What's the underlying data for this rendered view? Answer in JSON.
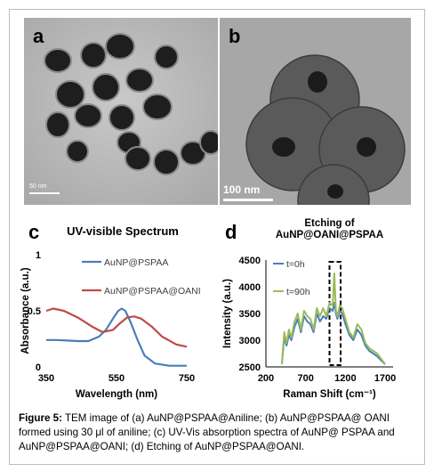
{
  "figure": {
    "panel_a": {
      "label": "a",
      "scale_bar": "50 nm"
    },
    "panel_b": {
      "label": "b",
      "scale_bar": "100 nm"
    },
    "panel_c": {
      "label": "c"
    },
    "panel_d": {
      "label": "d"
    },
    "caption": {
      "prefix": "Figure 5:",
      "text": " TEM image of (a) AuNP@PSPAA@Aniline; (b) AuNP@PSPAA@ OANI formed using 30 μl of aniline; (c) UV-Vis absorption spectra of AuNP@ PSPAA and AuNP@PSPAA@OANI; (d) Etching of AuNP@PSPAA@OANI."
    }
  },
  "colors": {
    "blue": "#4a7ebb",
    "red": "#be4b48",
    "green": "#9bbb59",
    "frame": "#bdbdbd"
  },
  "chart_data": [
    {
      "type": "line",
      "title": "UV-visible Spectrum",
      "xlabel": "Wavelength (nm)",
      "ylabel": "Absorbance (a.u.)",
      "xlim": [
        350,
        750
      ],
      "ylim": [
        0,
        1
      ],
      "xticks": [
        "350",
        "550",
        "750"
      ],
      "yticks": [
        "0",
        "0.5",
        "1"
      ],
      "legend_position": "top-right",
      "series": [
        {
          "name": "AuNP@PSPAA",
          "x": [
            350,
            380,
            410,
            440,
            470,
            500,
            520,
            540,
            555,
            565,
            575,
            590,
            610,
            630,
            660,
            700,
            750
          ],
          "y": [
            0.24,
            0.24,
            0.235,
            0.23,
            0.23,
            0.27,
            0.33,
            0.43,
            0.5,
            0.52,
            0.5,
            0.4,
            0.24,
            0.1,
            0.03,
            0.01,
            0.01
          ]
        },
        {
          "name": "AuNP@PSPAA@OANI",
          "x": [
            350,
            370,
            400,
            440,
            480,
            510,
            540,
            560,
            580,
            600,
            620,
            650,
            680,
            720,
            750
          ],
          "y": [
            0.5,
            0.52,
            0.5,
            0.44,
            0.36,
            0.31,
            0.33,
            0.39,
            0.44,
            0.45,
            0.43,
            0.36,
            0.27,
            0.2,
            0.18
          ]
        }
      ]
    },
    {
      "type": "line",
      "title": "Etching of AuNP@OANI@PSPAA",
      "title_lines": [
        "Etching of",
        "AuNP@OANI@PSPAA"
      ],
      "xlabel": "Raman Shift (cm⁻¹)",
      "ylabel": "Intensity (a.u.)",
      "xlim": [
        200,
        1800
      ],
      "ylim": [
        2500,
        4500
      ],
      "xticks": [
        "200",
        "700",
        "1200",
        "1700"
      ],
      "yticks": [
        "2500",
        "3000",
        "3500",
        "4000",
        "4500"
      ],
      "legend_position": "top-left",
      "highlight_range": [
        1000,
        1140
      ],
      "series": [
        {
          "name": "t=0h",
          "x": [
            400,
            430,
            460,
            490,
            520,
            560,
            600,
            640,
            680,
            720,
            760,
            800,
            840,
            880,
            920,
            960,
            1000,
            1040,
            1060,
            1080,
            1100,
            1130,
            1160,
            1200,
            1250,
            1300,
            1350,
            1400,
            1450,
            1500,
            1550,
            1600,
            1650,
            1700
          ],
          "y": [
            2550,
            3050,
            2900,
            3100,
            3000,
            3250,
            3400,
            3150,
            3450,
            3350,
            3300,
            3150,
            3500,
            3350,
            3450,
            3400,
            3600,
            3550,
            3700,
            3500,
            3400,
            3550,
            3500,
            3300,
            3100,
            3000,
            3200,
            3100,
            2900,
            2800,
            2750,
            2700,
            2620,
            2550
          ]
        },
        {
          "name": "t=90h",
          "x": [
            400,
            430,
            460,
            490,
            520,
            560,
            600,
            640,
            680,
            720,
            760,
            800,
            840,
            880,
            920,
            960,
            1000,
            1040,
            1060,
            1080,
            1100,
            1130,
            1160,
            1200,
            1250,
            1300,
            1350,
            1400,
            1450,
            1500,
            1550,
            1600,
            1650,
            1700
          ],
          "y": [
            2550,
            3150,
            2950,
            3200,
            3050,
            3350,
            3500,
            3200,
            3550,
            3450,
            3400,
            3200,
            3600,
            3450,
            3600,
            3450,
            3700,
            3650,
            4250,
            3550,
            3450,
            3650,
            3600,
            3400,
            3150,
            3050,
            3300,
            3200,
            2950,
            2850,
            2800,
            2750,
            2650,
            2550
          ]
        }
      ]
    }
  ]
}
